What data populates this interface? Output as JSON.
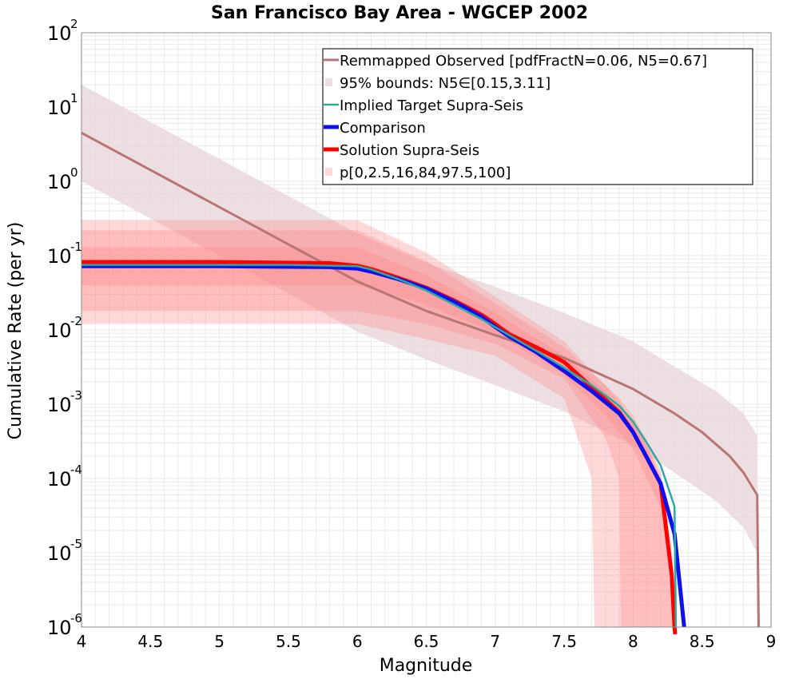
{
  "chart_data": {
    "type": "line",
    "title": "San Francisco Bay Area - WGCEP 2002",
    "xlabel": "Magnitude",
    "ylabel": "Cumulative Rate (per yr)",
    "xlim": [
      4,
      9
    ],
    "ylim": [
      1e-06,
      100
    ],
    "yscale": "log",
    "grid": true,
    "legend_position": "top-right",
    "x_ticks": [
      "4",
      "4.5",
      "5",
      "5.5",
      "6",
      "6.5",
      "7",
      "7.5",
      "8",
      "8.5",
      "9"
    ],
    "y_ticks": [
      {
        "base": "10",
        "exp": "-6"
      },
      {
        "base": "10",
        "exp": "-5"
      },
      {
        "base": "10",
        "exp": "-4"
      },
      {
        "base": "10",
        "exp": "-3"
      },
      {
        "base": "10",
        "exp": "-2"
      },
      {
        "base": "10",
        "exp": "-1"
      },
      {
        "base": "10",
        "exp": "0"
      },
      {
        "base": "10",
        "exp": "1"
      },
      {
        "base": "10",
        "exp": "2"
      }
    ],
    "colors": {
      "observed": "#b87575",
      "observed_band": "#ead9dc",
      "implied_target": "#2aaaa0",
      "comparison": "#1010ee",
      "solution": "#ff0000",
      "solution_band": "#ff8080"
    },
    "legend": [
      {
        "key": "observed",
        "label": "Remmapped Observed [pdfFractN=0.06, N5=0.67]",
        "kind": "line"
      },
      {
        "key": "observed_band",
        "label": "95% bounds: N5∈[0.15,3.11]",
        "kind": "band"
      },
      {
        "key": "implied_target",
        "label": "Implied Target Supra-Seis",
        "kind": "line"
      },
      {
        "key": "comparison",
        "label": "Comparison",
        "kind": "thick"
      },
      {
        "key": "solution",
        "label": "Solution Supra-Seis",
        "kind": "thick"
      },
      {
        "key": "solution_band",
        "label": "p[0,2.5,16,84,97.5,100]",
        "kind": "band"
      }
    ],
    "series": [
      {
        "key": "observed",
        "name": "Remmapped Observed [pdfFractN=0.06, N5=0.67]",
        "x": [
          4.0,
          5.0,
          6.0,
          6.5,
          7.0,
          7.5,
          8.0,
          8.3,
          8.5,
          8.7,
          8.8,
          8.9,
          8.91
        ],
        "y": [
          4.5,
          0.45,
          0.045,
          0.018,
          0.0085,
          0.0042,
          0.0016,
          0.00075,
          0.00042,
          0.0002,
          0.00012,
          6e-05,
          1e-06
        ]
      },
      {
        "key": "implied_target",
        "name": "Implied Target Supra-Seis",
        "x": [
          4.0,
          5.5,
          6.0,
          6.1,
          6.3,
          6.5,
          6.7,
          6.9,
          7.1,
          7.3,
          7.5,
          7.7,
          7.9,
          8.0,
          8.1,
          8.2,
          8.3,
          8.31
        ],
        "y": [
          0.075,
          0.075,
          0.072,
          0.065,
          0.048,
          0.034,
          0.022,
          0.014,
          0.0085,
          0.0052,
          0.0031,
          0.0018,
          0.00095,
          0.00058,
          0.0003,
          0.00015,
          4.2e-05,
          1e-06
        ]
      },
      {
        "key": "comparison",
        "name": "Comparison",
        "x": [
          4.0,
          5.0,
          5.8,
          6.0,
          6.1,
          6.3,
          6.5,
          6.7,
          6.9,
          7.0,
          7.1,
          7.3,
          7.5,
          7.7,
          7.9,
          8.0,
          8.1,
          8.2,
          8.3,
          8.37
        ],
        "y": [
          0.072,
          0.072,
          0.07,
          0.067,
          0.061,
          0.048,
          0.036,
          0.024,
          0.015,
          0.011,
          0.0082,
          0.005,
          0.0028,
          0.0015,
          0.00075,
          0.00042,
          0.00019,
          8.5e-05,
          1.8e-05,
          1e-06
        ]
      },
      {
        "key": "solution",
        "name": "Solution Supra-Seis",
        "x": [
          4.0,
          5.0,
          5.8,
          6.0,
          6.1,
          6.3,
          6.5,
          6.7,
          6.9,
          7.0,
          7.1,
          7.3,
          7.5,
          7.7,
          7.9,
          8.0,
          8.1,
          8.2,
          8.28,
          8.3,
          8.305
        ],
        "y": [
          0.082,
          0.082,
          0.079,
          0.073,
          0.066,
          0.05,
          0.037,
          0.025,
          0.016,
          0.012,
          0.0088,
          0.0058,
          0.0037,
          0.0017,
          0.00078,
          0.00042,
          0.00019,
          8.5e-05,
          5e-06,
          1e-06,
          8e-07
        ]
      }
    ],
    "bands": [
      {
        "key": "observed_band",
        "name": "95% bounds: N5∈[0.15,3.11]",
        "x": [
          4.0,
          5.0,
          6.0,
          6.5,
          7.0,
          7.5,
          8.0,
          8.3,
          8.6,
          8.8,
          8.9
        ],
        "lower": [
          1.0,
          0.1,
          0.0095,
          0.004,
          0.0018,
          0.0008,
          0.00028,
          0.00012,
          5e-05,
          2.2e-05,
          1e-05
        ],
        "upper": [
          20.0,
          2.0,
          0.2,
          0.08,
          0.038,
          0.017,
          0.007,
          0.0032,
          0.0015,
          0.00075,
          0.00038
        ]
      },
      {
        "key": "solution_band",
        "name": "p[0,2.5,16,84,97.5,100]",
        "bands": [
          {
            "x": [
              4.0,
              6.0,
              6.5,
              7.0,
              7.5,
              7.7,
              7.72,
              7.9,
              8.0,
              8.1,
              8.2,
              8.3
            ],
            "lower": [
              0.012,
              0.012,
              0.0075,
              0.0045,
              0.0012,
              0.0001,
              1e-06,
              1e-06,
              1e-06,
              1e-06,
              1e-06,
              1e-06
            ],
            "upper": [
              0.3,
              0.3,
              0.11,
              0.028,
              0.007,
              0.0028,
              0.0025,
              0.0012,
              0.0007,
              0.00032,
              0.00013,
              1e-06
            ]
          },
          {
            "x": [
              4.0,
              6.0,
              6.5,
              7.0,
              7.5,
              7.8,
              7.9,
              7.91,
              8.0,
              8.1,
              8.2,
              8.3
            ],
            "lower": [
              0.018,
              0.018,
              0.012,
              0.0065,
              0.0022,
              0.00035,
              0.0001,
              1e-06,
              1e-06,
              1e-06,
              1e-06,
              1e-06
            ],
            "upper": [
              0.22,
              0.22,
              0.085,
              0.023,
              0.0058,
              0.0018,
              0.0011,
              0.001,
              0.00058,
              0.00028,
              0.00011,
              1e-06
            ]
          },
          {
            "x": [
              4.0,
              6.0,
              6.5,
              7.0,
              7.5,
              7.8,
              8.0,
              8.1,
              8.2,
              8.28,
              8.29,
              8.3
            ],
            "lower": [
              0.04,
              0.04,
              0.022,
              0.009,
              0.0025,
              0.0007,
              0.00025,
              0.0001,
              4e-05,
              4e-06,
              1e-06,
              1e-06
            ],
            "upper": [
              0.13,
              0.13,
              0.055,
              0.017,
              0.0045,
              0.0015,
              0.00055,
              0.00026,
              0.0001,
              1.2e-05,
              4e-06,
              1e-06
            ]
          }
        ]
      }
    ]
  }
}
